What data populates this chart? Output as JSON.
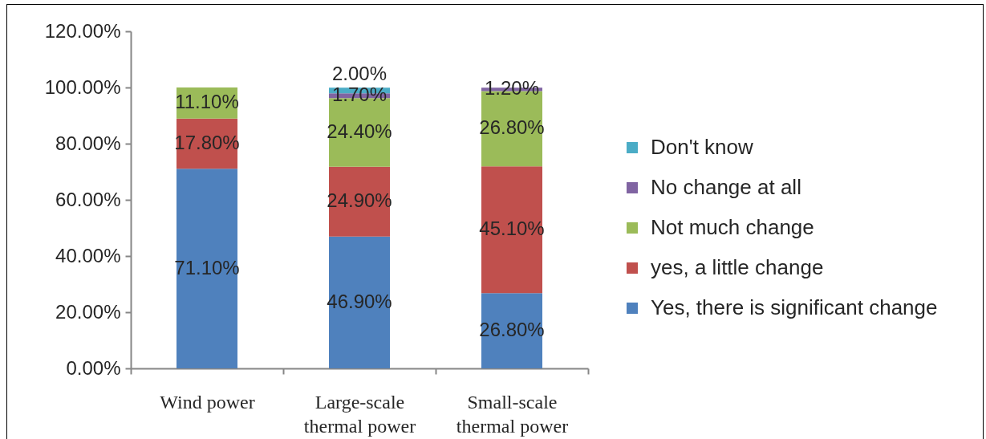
{
  "chart_data": {
    "type": "bar",
    "stacked": true,
    "categories": [
      "Wind power",
      "Large-scale thermal power",
      "Small-scale thermal power"
    ],
    "series": [
      {
        "name": "Yes, there is significant change",
        "color": "#4f81bd",
        "values": [
          71.1,
          46.9,
          26.8
        ],
        "value_labels": [
          "71.10%",
          "46.90%",
          "26.80%"
        ]
      },
      {
        "name": "yes, a little change",
        "color": "#c0504d",
        "values": [
          17.8,
          24.9,
          45.1
        ],
        "value_labels": [
          "17.80%",
          "24.90%",
          "45.10%"
        ]
      },
      {
        "name": "Not much change",
        "color": "#9bbb59",
        "values": [
          11.1,
          24.4,
          26.8
        ],
        "value_labels": [
          "11.10%",
          "24.40%",
          "26.80%"
        ]
      },
      {
        "name": "No change at all",
        "color": "#8064a2",
        "values": [
          null,
          1.7,
          1.2
        ],
        "value_labels": [
          null,
          "1.70%",
          "1.20%"
        ]
      },
      {
        "name": "Don't know",
        "color": "#4bacc6",
        "values": [
          null,
          2.0,
          null
        ],
        "value_labels": [
          null,
          "2.00%",
          null
        ]
      }
    ],
    "ylim": [
      0,
      120
    ],
    "yticks": [
      {
        "value": 0,
        "label": "0.00%"
      },
      {
        "value": 20,
        "label": "20.00%"
      },
      {
        "value": 40,
        "label": "40.00%"
      },
      {
        "value": 60,
        "label": "60.00%"
      },
      {
        "value": 80,
        "label": "80.00%"
      },
      {
        "value": 100,
        "label": "100.00%"
      },
      {
        "value": 120,
        "label": "120.00%"
      }
    ],
    "grid": false,
    "legend": "right"
  }
}
